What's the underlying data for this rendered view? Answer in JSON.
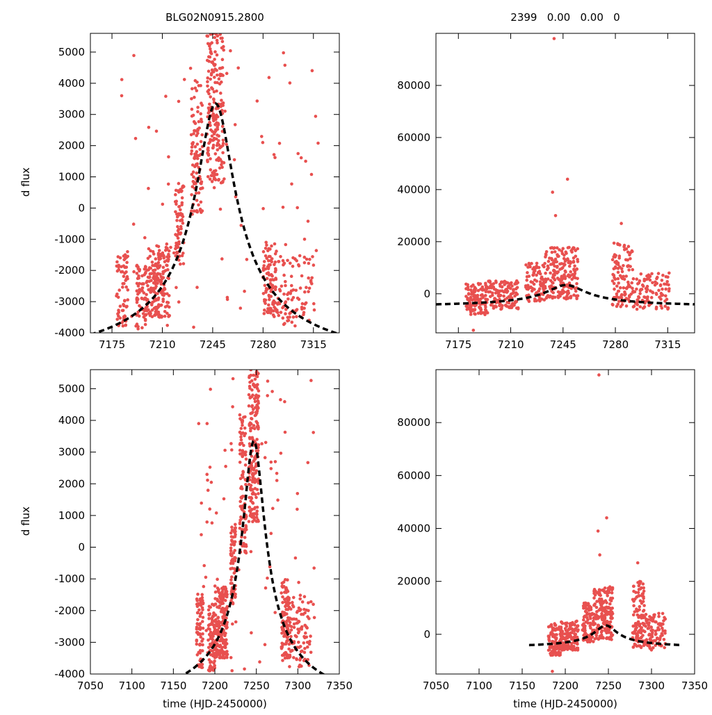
{
  "figure": {
    "title_left": "BLG02N0915.2800",
    "title_right": "2399   0.00   0.00   0",
    "xlabel": "time (HJD-2450000)",
    "ylabel": "d flux"
  },
  "colors": {
    "points": "#e8504f",
    "model": "#000000"
  },
  "chart_data": [
    {
      "type": "scatter",
      "name": "top-left",
      "xlim": [
        7160,
        7333
      ],
      "ylim": [
        -4000,
        5600
      ],
      "xticks": [
        7175,
        7210,
        7245,
        7280,
        7315
      ],
      "yticks": [
        -4000,
        -3000,
        -2000,
        -1000,
        0,
        1000,
        2000,
        3000,
        4000,
        5000
      ],
      "ylabel": "d flux",
      "title": "BLG02N0915.2800",
      "model": {
        "t0": 7247,
        "peak": 3350,
        "width": 16,
        "baseline": -5300
      },
      "clusters": [
        {
          "x": [
            7178,
            7186
          ],
          "y": [
            -3800,
            -1400
          ],
          "n": 70,
          "seed": 11
        },
        {
          "x": [
            7192,
            7200
          ],
          "y": [
            -3900,
            -1800
          ],
          "n": 80,
          "seed": 12
        },
        {
          "x": [
            7200,
            7215
          ],
          "y": [
            -3500,
            -1200
          ],
          "n": 180,
          "seed": 13
        },
        {
          "x": [
            7219,
            7225
          ],
          "y": [
            -1800,
            800
          ],
          "n": 70,
          "seed": 14
        },
        {
          "x": [
            7230,
            7238
          ],
          "y": [
            -200,
            4200
          ],
          "n": 100,
          "seed": 15
        },
        {
          "x": [
            7241,
            7253
          ],
          "y": [
            800,
            5600
          ],
          "n": 200,
          "seed": 16
        },
        {
          "x": [
            7280,
            7290
          ],
          "y": [
            -3500,
            -1000
          ],
          "n": 100,
          "seed": 17
        },
        {
          "x": [
            7290,
            7316
          ],
          "y": [
            -3800,
            -1500
          ],
          "n": 90,
          "seed": 18
        },
        {
          "x": [
            7180,
            7320
          ],
          "y": [
            -3900,
            5400
          ],
          "n": 90,
          "seed": 19
        }
      ]
    },
    {
      "type": "scatter",
      "name": "top-right",
      "xlim": [
        7160,
        7333
      ],
      "ylim": [
        -15000,
        100000
      ],
      "xticks": [
        7175,
        7210,
        7245,
        7280,
        7315
      ],
      "yticks": [
        0,
        20000,
        40000,
        60000,
        80000
      ],
      "title": "2399   0.00   0.00   0",
      "model": {
        "t0": 7247,
        "peak": 3350,
        "width": 16,
        "baseline": -5300
      },
      "clusters": [
        {
          "x": [
            7180,
            7195
          ],
          "y": [
            -8000,
            4000
          ],
          "n": 110,
          "seed": 21
        },
        {
          "x": [
            7195,
            7215
          ],
          "y": [
            -6000,
            5000
          ],
          "n": 130,
          "seed": 22
        },
        {
          "x": [
            7220,
            7233
          ],
          "y": [
            -3000,
            12000
          ],
          "n": 90,
          "seed": 23
        },
        {
          "x": [
            7233,
            7255
          ],
          "y": [
            -2000,
            18000
          ],
          "n": 200,
          "seed": 24
        },
        {
          "x": [
            7278,
            7292
          ],
          "y": [
            -5000,
            20000
          ],
          "n": 110,
          "seed": 25
        },
        {
          "x": [
            7292,
            7316
          ],
          "y": [
            -6000,
            8000
          ],
          "n": 100,
          "seed": 26
        }
      ],
      "outliers": [
        [
          7238,
          39000
        ],
        [
          7240,
          30000
        ],
        [
          7248,
          44000
        ],
        [
          7284,
          27000
        ],
        [
          7239,
          98000
        ],
        [
          7185,
          -14000
        ]
      ]
    },
    {
      "type": "scatter",
      "name": "bottom-left",
      "xlim": [
        7050,
        7350
      ],
      "ylim": [
        -4000,
        5600
      ],
      "xticks": [
        7050,
        7100,
        7150,
        7200,
        7250,
        7300,
        7350
      ],
      "yticks": [
        -4000,
        -3000,
        -2000,
        -1000,
        0,
        1000,
        2000,
        3000,
        4000,
        5000
      ],
      "ylabel": "d flux",
      "xlabel": "time (HJD-2450000)",
      "model": {
        "t0": 7247,
        "peak": 3350,
        "width": 16,
        "baseline": -5300
      },
      "clusters": [
        {
          "x": [
            7178,
            7186
          ],
          "y": [
            -3800,
            -1400
          ],
          "n": 70,
          "seed": 31
        },
        {
          "x": [
            7192,
            7200
          ],
          "y": [
            -3900,
            -1800
          ],
          "n": 80,
          "seed": 32
        },
        {
          "x": [
            7200,
            7215
          ],
          "y": [
            -3500,
            -1200
          ],
          "n": 180,
          "seed": 33
        },
        {
          "x": [
            7219,
            7225
          ],
          "y": [
            -1800,
            800
          ],
          "n": 70,
          "seed": 34
        },
        {
          "x": [
            7230,
            7238
          ],
          "y": [
            -200,
            4200
          ],
          "n": 100,
          "seed": 35
        },
        {
          "x": [
            7241,
            7253
          ],
          "y": [
            800,
            5600
          ],
          "n": 200,
          "seed": 36
        },
        {
          "x": [
            7280,
            7290
          ],
          "y": [
            -3500,
            -1000
          ],
          "n": 100,
          "seed": 37
        },
        {
          "x": [
            7290,
            7316
          ],
          "y": [
            -3800,
            -1500
          ],
          "n": 90,
          "seed": 38
        },
        {
          "x": [
            7180,
            7320
          ],
          "y": [
            -3900,
            5400
          ],
          "n": 90,
          "seed": 39
        }
      ]
    },
    {
      "type": "scatter",
      "name": "bottom-right",
      "xlim": [
        7050,
        7350
      ],
      "ylim": [
        -15000,
        100000
      ],
      "xticks": [
        7050,
        7100,
        7150,
        7200,
        7250,
        7300,
        7350
      ],
      "yticks": [
        0,
        20000,
        40000,
        60000,
        80000
      ],
      "xlabel": "time (HJD-2450000)",
      "model": {
        "t0": 7247,
        "peak": 3350,
        "width": 16,
        "baseline": -5300
      },
      "clusters": [
        {
          "x": [
            7180,
            7195
          ],
          "y": [
            -8000,
            4000
          ],
          "n": 110,
          "seed": 41
        },
        {
          "x": [
            7195,
            7215
          ],
          "y": [
            -6000,
            5000
          ],
          "n": 130,
          "seed": 42
        },
        {
          "x": [
            7220,
            7233
          ],
          "y": [
            -3000,
            12000
          ],
          "n": 90,
          "seed": 43
        },
        {
          "x": [
            7233,
            7255
          ],
          "y": [
            -2000,
            18000
          ],
          "n": 200,
          "seed": 44
        },
        {
          "x": [
            7278,
            7292
          ],
          "y": [
            -5000,
            20000
          ],
          "n": 110,
          "seed": 45
        },
        {
          "x": [
            7292,
            7316
          ],
          "y": [
            -6000,
            8000
          ],
          "n": 100,
          "seed": 46
        }
      ],
      "outliers": [
        [
          7238,
          39000
        ],
        [
          7240,
          30000
        ],
        [
          7248,
          44000
        ],
        [
          7284,
          27000
        ],
        [
          7239,
          98000
        ],
        [
          7185,
          -14000
        ]
      ]
    }
  ]
}
